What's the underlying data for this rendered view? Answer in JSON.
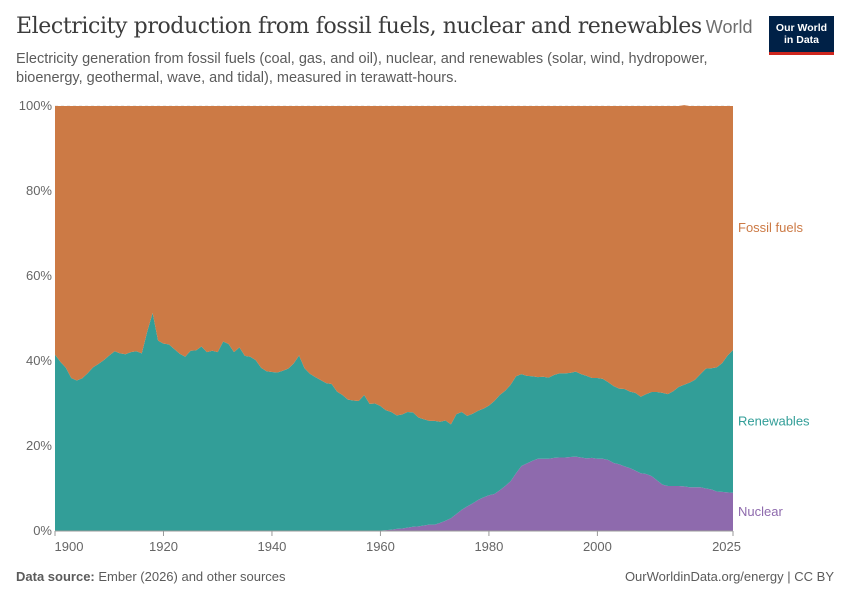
{
  "header": {
    "title": "Electricity production from fossil fuels, nuclear and renewables",
    "entity": "World",
    "subtitle": "Electricity generation from fossil fuels (coal, gas, and oil), nuclear, and renewables (solar, wind, hydropower, bioenergy, geothermal, wave, and tidal), measured in terawatt-hours."
  },
  "logo": {
    "line1": "Our World",
    "line2": "in Data"
  },
  "footer": {
    "source_label": "Data source:",
    "source_text": "Ember (2026) and other sources",
    "right_text": "OurWorldinData.org/energy | CC BY"
  },
  "colors": {
    "fossil": "#cc7a45",
    "renewables": "#329e98",
    "nuclear": "#8e6aad",
    "grid": "#dddddd"
  },
  "chart_data": {
    "type": "area",
    "stacked": true,
    "normalized": true,
    "xlim": [
      1900,
      2025
    ],
    "ylim": [
      0,
      100
    ],
    "xticks": [
      {
        "v": 1900,
        "label": "1900"
      },
      {
        "v": 1920,
        "label": "1920"
      },
      {
        "v": 1940,
        "label": "1940"
      },
      {
        "v": 1960,
        "label": "1960"
      },
      {
        "v": 1980,
        "label": "1980"
      },
      {
        "v": 2000,
        "label": "2000"
      },
      {
        "v": 2025,
        "label": "2025"
      }
    ],
    "yticks": [
      {
        "v": 0,
        "label": "0%"
      },
      {
        "v": 20,
        "label": "20%"
      },
      {
        "v": 40,
        "label": "40%"
      },
      {
        "v": 60,
        "label": "60%"
      },
      {
        "v": 80,
        "label": "80%"
      },
      {
        "v": 100,
        "label": "100%"
      }
    ],
    "x": [
      1900,
      1901,
      1902,
      1903,
      1904,
      1905,
      1906,
      1907,
      1908,
      1909,
      1910,
      1911,
      1912,
      1913,
      1914,
      1915,
      1916,
      1917,
      1918,
      1919,
      1920,
      1921,
      1922,
      1923,
      1924,
      1925,
      1926,
      1927,
      1928,
      1929,
      1930,
      1931,
      1932,
      1933,
      1934,
      1935,
      1936,
      1937,
      1938,
      1939,
      1940,
      1941,
      1942,
      1943,
      1944,
      1945,
      1946,
      1947,
      1948,
      1949,
      1950,
      1951,
      1952,
      1953,
      1954,
      1955,
      1956,
      1957,
      1958,
      1959,
      1960,
      1961,
      1962,
      1963,
      1964,
      1965,
      1966,
      1967,
      1968,
      1969,
      1970,
      1971,
      1972,
      1973,
      1974,
      1975,
      1976,
      1977,
      1978,
      1979,
      1980,
      1981,
      1982,
      1983,
      1984,
      1985,
      1986,
      1987,
      1988,
      1989,
      1990,
      1991,
      1992,
      1993,
      1994,
      1995,
      1996,
      1997,
      1998,
      1999,
      2000,
      2001,
      2002,
      2003,
      2004,
      2005,
      2006,
      2007,
      2008,
      2009,
      2010,
      2011,
      2012,
      2013,
      2014,
      2015,
      2016,
      2017,
      2018,
      2019,
      2020,
      2021,
      2022,
      2023,
      2024,
      2025
    ],
    "series": [
      {
        "name": "Nuclear",
        "color": "#8e6aad",
        "values": [
          0,
          0,
          0,
          0,
          0,
          0,
          0,
          0,
          0,
          0,
          0,
          0,
          0,
          0,
          0,
          0,
          0,
          0,
          0,
          0,
          0,
          0,
          0,
          0,
          0,
          0,
          0,
          0,
          0,
          0,
          0,
          0,
          0,
          0,
          0,
          0,
          0,
          0,
          0,
          0,
          0,
          0,
          0,
          0,
          0,
          0,
          0,
          0,
          0,
          0,
          0,
          0,
          0,
          0,
          0,
          0,
          0.1,
          0.1,
          0.1,
          0.1,
          0.1,
          0.2,
          0.3,
          0.5,
          0.6,
          0.8,
          1.0,
          1.1,
          1.3,
          1.5,
          1.5,
          1.9,
          2.4,
          3.0,
          4.0,
          5.0,
          5.8,
          6.5,
          7.3,
          7.9,
          8.4,
          8.7,
          9.6,
          10.6,
          11.7,
          13.6,
          15.3,
          15.9,
          16.5,
          17.0,
          17.0,
          17.0,
          17.2,
          17.3,
          17.3,
          17.4,
          17.5,
          17.3,
          17.1,
          17.2,
          17.0,
          17.0,
          16.7,
          16.0,
          15.7,
          15.2,
          14.8,
          14.2,
          13.6,
          13.4,
          12.9,
          11.9,
          10.9,
          10.6,
          10.6,
          10.6,
          10.5,
          10.3,
          10.3,
          10.3,
          10.0,
          9.8,
          9.3,
          9.2,
          9.1,
          9.0
        ]
      },
      {
        "name": "Renewables",
        "color": "#329e98",
        "values": [
          41.5,
          39.8,
          38.4,
          36.0,
          35.4,
          35.9,
          37.1,
          38.5,
          39.3,
          40.2,
          41.3,
          42.3,
          41.8,
          41.6,
          42.1,
          42.3,
          41.8,
          46.9,
          51.3,
          44.8,
          44.1,
          43.9,
          42.8,
          41.7,
          41.0,
          42.4,
          42.5,
          43.4,
          42.1,
          42.4,
          42.1,
          44.6,
          44.0,
          42.1,
          43.2,
          41.2,
          41.0,
          40.2,
          38.4,
          37.6,
          37.4,
          37.3,
          37.7,
          38.2,
          39.4,
          41.3,
          38.3,
          37.0,
          36.2,
          35.5,
          34.8,
          34.6,
          32.8,
          32.0,
          30.9,
          30.7,
          30.5,
          31.9,
          29.8,
          29.9,
          29.3,
          28.2,
          27.7,
          26.7,
          26.8,
          27.2,
          26.9,
          25.6,
          25.0,
          24.4,
          24.4,
          23.8,
          23.6,
          22.1,
          23.5,
          23.0,
          21.3,
          21.1,
          21.0,
          20.9,
          21.1,
          21.9,
          22.4,
          22.4,
          22.7,
          22.8,
          21.6,
          20.6,
          19.9,
          19.2,
          19.3,
          19.1,
          19.5,
          19.8,
          19.8,
          19.8,
          20.0,
          19.6,
          19.4,
          18.8,
          19.0,
          18.8,
          18.3,
          18.1,
          17.8,
          18.2,
          18.0,
          18.3,
          18.0,
          18.8,
          19.8,
          20.8,
          21.6,
          21.6,
          22.3,
          23.3,
          23.9,
          24.6,
          25.3,
          26.6,
          28.2,
          28.5,
          29.2,
          30.3,
          32.2,
          33.6
        ]
      },
      {
        "name": "Fossil fuels",
        "color": "#cc7a45",
        "values": [
          58.5,
          60.2,
          61.6,
          64.0,
          64.6,
          64.1,
          62.9,
          61.5,
          60.7,
          59.8,
          58.7,
          57.7,
          58.2,
          58.4,
          57.9,
          57.7,
          58.2,
          53.1,
          48.7,
          55.2,
          55.9,
          56.1,
          57.2,
          58.3,
          59.0,
          57.6,
          57.5,
          56.6,
          57.9,
          57.6,
          57.9,
          55.4,
          56.0,
          57.9,
          56.8,
          58.8,
          59.0,
          59.8,
          61.6,
          62.4,
          62.6,
          62.7,
          62.3,
          61.8,
          60.6,
          58.7,
          61.7,
          63.0,
          63.8,
          64.5,
          65.2,
          65.4,
          67.2,
          68.0,
          69.1,
          69.3,
          69.4,
          68.0,
          70.1,
          70.0,
          70.6,
          71.6,
          72.0,
          72.8,
          72.6,
          72.0,
          72.1,
          73.3,
          73.7,
          74.1,
          74.1,
          74.3,
          74.0,
          74.9,
          72.5,
          72.0,
          72.9,
          72.4,
          71.7,
          71.2,
          70.5,
          69.4,
          68.0,
          67.0,
          65.6,
          63.6,
          63.1,
          63.5,
          63.6,
          63.8,
          63.7,
          63.9,
          63.3,
          62.9,
          62.9,
          62.8,
          62.5,
          63.1,
          63.5,
          64.0,
          64.0,
          64.2,
          65.0,
          65.9,
          66.5,
          66.6,
          67.2,
          67.5,
          68.4,
          67.8,
          67.3,
          67.3,
          67.5,
          67.8,
          67.1,
          66.1,
          65.8,
          65.1,
          64.4,
          63.1,
          61.8,
          61.7,
          61.5,
          60.5,
          58.7,
          57.4
        ]
      }
    ]
  }
}
